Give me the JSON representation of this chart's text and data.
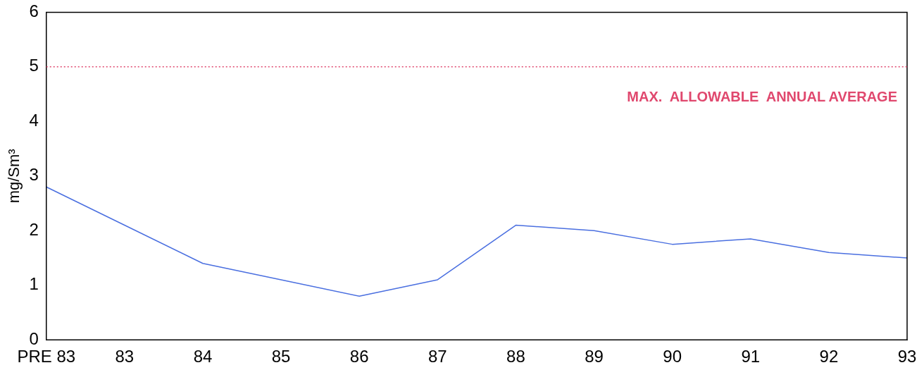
{
  "chart_data": {
    "type": "line",
    "ylabel": "mg/Sm³",
    "categories": [
      "PRE 83",
      "83",
      "84",
      "85",
      "86",
      "87",
      "88",
      "89",
      "90",
      "91",
      "92",
      "93"
    ],
    "series": [
      {
        "color": "#4a6fe0",
        "values": [
          2.8,
          2.1,
          1.4,
          1.1,
          0.8,
          1.1,
          2.1,
          2.0,
          1.75,
          1.85,
          1.6,
          1.5
        ]
      }
    ],
    "ylim": [
      0,
      6
    ],
    "yticks": [
      0,
      1,
      2,
      3,
      4,
      5,
      6
    ],
    "grid": false,
    "legend": false,
    "marker": "none",
    "line_style": "solid",
    "ref_lines": [
      {
        "axis": "y",
        "value": 5,
        "label": "MAX.  ALLOWABLE  ANNUAL AVERAGE",
        "color": "#e0486e",
        "line_style": "dotted"
      }
    ]
  }
}
